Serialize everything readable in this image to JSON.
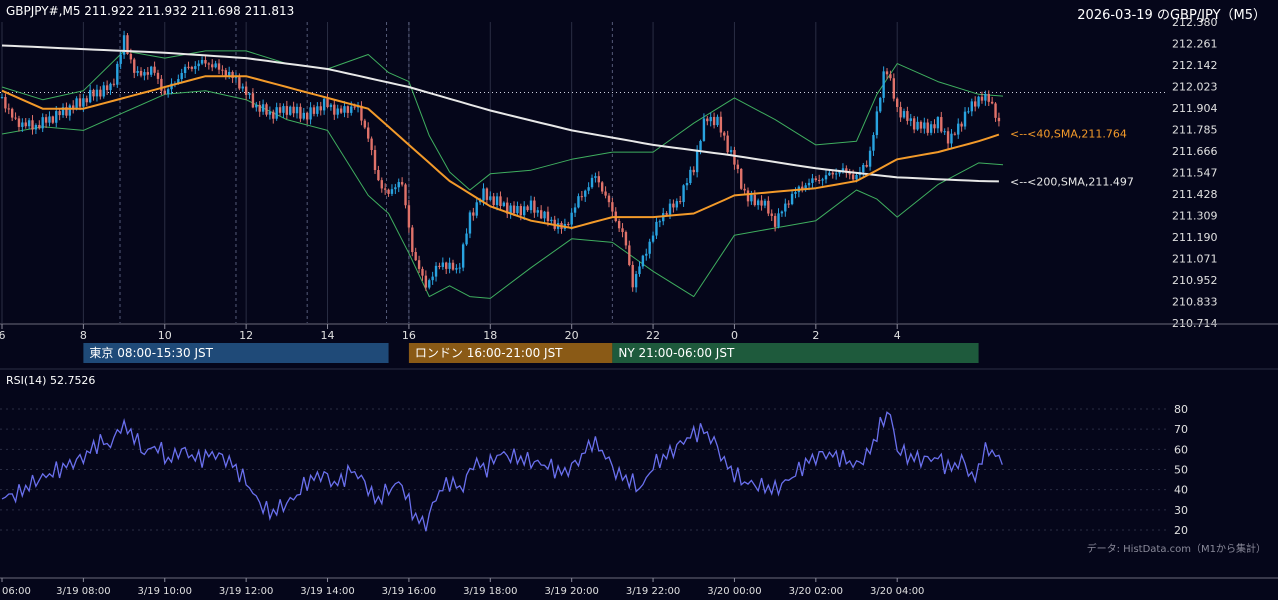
{
  "header": {
    "symbol_ohlc": "GBPJPY#,M5 211.922 211.932 211.698 211.813",
    "title_right": "2026-03-19 のGBP/JPY（M5）"
  },
  "footer": {
    "source": "データ: HistData.com（M1から集計）"
  },
  "colors": {
    "background": "#05061a",
    "up": "#29a3e0",
    "down": "#e0726a",
    "sma40": "#f39a2a",
    "sma200": "#e8e8e8",
    "bollinger": "#3fae5f",
    "rsi": "#6a70ee",
    "tokyo": "#1f4a78",
    "london": "#8a5a16",
    "ny": "#1e5a3c"
  },
  "chart_data": [
    {
      "type": "candlestick",
      "instrument": "GBPJPY# M5",
      "overlays": [
        "SMA 40",
        "SMA 200",
        "Bollinger Bands"
      ],
      "y_ticks": [
        "212.380",
        "212.261",
        "212.142",
        "212.023",
        "211.904",
        "211.785",
        "211.666",
        "211.547",
        "211.428",
        "211.309",
        "211.190",
        "211.071",
        "210.952",
        "210.833",
        "210.714"
      ],
      "ylim": [
        210.714,
        212.38
      ],
      "x_ticks": [
        {
          "label": "6",
          "hour": 6
        },
        {
          "label": "8",
          "hour": 8
        },
        {
          "label": "10",
          "hour": 10
        },
        {
          "label": "12",
          "hour": 12
        },
        {
          "label": "14",
          "hour": 14
        },
        {
          "label": "16",
          "hour": 16
        },
        {
          "label": "18",
          "hour": 18
        },
        {
          "label": "20",
          "hour": 20
        },
        {
          "label": "22",
          "hour": 22
        },
        {
          "label": "0",
          "hour": 24
        },
        {
          "label": "2",
          "hour": 26
        },
        {
          "label": "4",
          "hour": 28
        }
      ],
      "xlim": [
        6,
        30.6
      ],
      "reference_line": 211.99,
      "vertical_markers_hours": [
        8.9,
        11.75,
        13.5,
        15.45,
        16.0,
        21.0
      ],
      "sessions": [
        {
          "label": "東京 08:00-15:30 JST",
          "start": 8,
          "end": 15.5
        },
        {
          "label": "ロンドン 16:00-21:00 JST",
          "start": 16,
          "end": 21
        },
        {
          "label": "NY 21:00-06:00 JST",
          "start": 21,
          "end": 30
        }
      ],
      "annotations": [
        {
          "text": "<--<40,SMA,211.764",
          "value": 211.764
        },
        {
          "text": "<--<200,SMA,211.497",
          "value": 211.497
        }
      ],
      "price_path": [
        [
          6.0,
          211.96
        ],
        [
          6.3,
          211.83
        ],
        [
          6.8,
          211.8
        ],
        [
          7.3,
          211.86
        ],
        [
          7.8,
          211.92
        ],
        [
          8.3,
          211.99
        ],
        [
          8.7,
          212.02
        ],
        [
          9.0,
          212.28
        ],
        [
          9.3,
          212.08
        ],
        [
          9.7,
          212.12
        ],
        [
          10.0,
          211.98
        ],
        [
          10.5,
          212.12
        ],
        [
          11.0,
          212.16
        ],
        [
          11.5,
          212.1
        ],
        [
          11.8,
          212.05
        ],
        [
          12.2,
          211.92
        ],
        [
          12.6,
          211.87
        ],
        [
          13.0,
          211.9
        ],
        [
          13.5,
          211.86
        ],
        [
          13.9,
          211.93
        ],
        [
          14.3,
          211.88
        ],
        [
          14.7,
          211.92
        ],
        [
          15.0,
          211.75
        ],
        [
          15.2,
          211.52
        ],
        [
          15.5,
          211.42
        ],
        [
          15.8,
          211.52
        ],
        [
          16.1,
          211.1
        ],
        [
          16.4,
          210.92
        ],
        [
          16.8,
          211.05
        ],
        [
          17.2,
          211.0
        ],
        [
          17.5,
          211.3
        ],
        [
          17.8,
          211.43
        ],
        [
          18.2,
          211.38
        ],
        [
          18.6,
          211.33
        ],
        [
          19.0,
          211.36
        ],
        [
          19.4,
          211.29
        ],
        [
          19.8,
          211.23
        ],
        [
          20.2,
          211.41
        ],
        [
          20.6,
          211.53
        ],
        [
          21.0,
          211.33
        ],
        [
          21.3,
          211.18
        ],
        [
          21.5,
          210.93
        ],
        [
          21.8,
          211.1
        ],
        [
          22.2,
          211.31
        ],
        [
          22.6,
          211.38
        ],
        [
          23.0,
          211.58
        ],
        [
          23.3,
          211.86
        ],
        [
          23.6,
          211.82
        ],
        [
          24.0,
          211.6
        ],
        [
          24.3,
          211.4
        ],
        [
          24.7,
          211.38
        ],
        [
          25.0,
          211.27
        ],
        [
          25.4,
          211.42
        ],
        [
          25.8,
          211.49
        ],
        [
          26.2,
          211.52
        ],
        [
          26.6,
          211.56
        ],
        [
          27.0,
          211.52
        ],
        [
          27.3,
          211.62
        ],
        [
          27.5,
          211.86
        ],
        [
          27.7,
          212.15
        ],
        [
          28.0,
          211.9
        ],
        [
          28.3,
          211.83
        ],
        [
          28.7,
          211.79
        ],
        [
          29.0,
          211.82
        ],
        [
          29.3,
          211.72
        ],
        [
          29.7,
          211.88
        ],
        [
          30.0,
          211.96
        ],
        [
          30.3,
          211.95
        ],
        [
          30.5,
          211.81
        ]
      ],
      "sma40": [
        [
          6.0,
          212.0
        ],
        [
          7.0,
          211.9
        ],
        [
          8.0,
          211.9
        ],
        [
          9.0,
          211.96
        ],
        [
          10.0,
          212.02
        ],
        [
          11.0,
          212.08
        ],
        [
          12.0,
          212.08
        ],
        [
          13.0,
          212.02
        ],
        [
          14.0,
          211.96
        ],
        [
          15.0,
          211.9
        ],
        [
          16.0,
          211.7
        ],
        [
          17.0,
          211.5
        ],
        [
          18.0,
          211.36
        ],
        [
          19.0,
          211.28
        ],
        [
          20.0,
          211.24
        ],
        [
          21.0,
          211.3
        ],
        [
          22.0,
          211.3
        ],
        [
          23.0,
          211.32
        ],
        [
          24.0,
          211.42
        ],
        [
          25.0,
          211.44
        ],
        [
          26.0,
          211.46
        ],
        [
          27.0,
          211.5
        ],
        [
          28.0,
          211.62
        ],
        [
          29.0,
          211.66
        ],
        [
          30.0,
          211.72
        ],
        [
          30.6,
          211.764
        ]
      ],
      "sma200": [
        [
          6.0,
          212.25
        ],
        [
          8.0,
          212.23
        ],
        [
          10.0,
          212.21
        ],
        [
          12.0,
          212.18
        ],
        [
          14.0,
          212.12
        ],
        [
          16.0,
          212.02
        ],
        [
          18.0,
          211.89
        ],
        [
          20.0,
          211.78
        ],
        [
          22.0,
          211.7
        ],
        [
          24.0,
          211.64
        ],
        [
          26.0,
          211.57
        ],
        [
          28.0,
          211.52
        ],
        [
          30.0,
          211.5
        ],
        [
          30.6,
          211.497
        ]
      ],
      "bollinger_upper": [
        [
          6.0,
          212.02
        ],
        [
          7.0,
          211.95
        ],
        [
          8.0,
          212.0
        ],
        [
          9.0,
          212.22
        ],
        [
          10.0,
          212.18
        ],
        [
          11.0,
          212.22
        ],
        [
          12.0,
          212.22
        ],
        [
          13.0,
          212.15
        ],
        [
          14.0,
          212.12
        ],
        [
          15.0,
          212.2
        ],
        [
          15.5,
          212.1
        ],
        [
          16.0,
          212.05
        ],
        [
          16.5,
          211.75
        ],
        [
          17.0,
          211.55
        ],
        [
          17.5,
          211.45
        ],
        [
          18.0,
          211.54
        ],
        [
          19.0,
          211.56
        ],
        [
          20.0,
          211.62
        ],
        [
          21.0,
          211.66
        ],
        [
          22.0,
          211.66
        ],
        [
          23.0,
          211.82
        ],
        [
          24.0,
          211.96
        ],
        [
          25.0,
          211.84
        ],
        [
          26.0,
          211.7
        ],
        [
          27.0,
          211.72
        ],
        [
          27.5,
          211.98
        ],
        [
          28.0,
          212.15
        ],
        [
          29.0,
          212.05
        ],
        [
          30.0,
          211.98
        ],
        [
          30.6,
          211.97
        ]
      ],
      "bollinger_lower": [
        [
          6.0,
          211.76
        ],
        [
          7.0,
          211.8
        ],
        [
          8.0,
          211.78
        ],
        [
          9.0,
          211.88
        ],
        [
          10.0,
          211.98
        ],
        [
          11.0,
          212.0
        ],
        [
          12.0,
          211.95
        ],
        [
          13.0,
          211.84
        ],
        [
          14.0,
          211.78
        ],
        [
          15.0,
          211.42
        ],
        [
          15.5,
          211.32
        ],
        [
          16.0,
          211.1
        ],
        [
          16.5,
          210.86
        ],
        [
          17.0,
          210.92
        ],
        [
          17.5,
          210.86
        ],
        [
          18.0,
          210.85
        ],
        [
          19.0,
          211.02
        ],
        [
          20.0,
          211.18
        ],
        [
          21.0,
          211.16
        ],
        [
          22.0,
          211.0
        ],
        [
          23.0,
          210.86
        ],
        [
          24.0,
          211.2
        ],
        [
          25.0,
          211.24
        ],
        [
          26.0,
          211.28
        ],
        [
          27.0,
          211.45
        ],
        [
          27.5,
          211.4
        ],
        [
          28.0,
          211.3
        ],
        [
          29.0,
          211.48
        ],
        [
          30.0,
          211.6
        ],
        [
          30.6,
          211.59
        ]
      ]
    },
    {
      "type": "line",
      "label": "RSI(14) 52.7526",
      "y_ticks": [
        "80",
        "70",
        "60",
        "50",
        "40",
        "30",
        "20"
      ],
      "ylim": [
        16,
        84
      ],
      "x_ticks": [
        "06:00",
        "3/19 08:00",
        "3/19 10:00",
        "3/19 12:00",
        "3/19 14:00",
        "3/19 16:00",
        "3/19 18:00",
        "3/19 20:00",
        "3/19 22:00",
        "3/20 00:00",
        "3/20 02:00",
        "3/20 04:00"
      ],
      "x_tick_hours": [
        6,
        8,
        10,
        12,
        14,
        16,
        18,
        20,
        22,
        24,
        26,
        28
      ],
      "xlim": [
        6,
        30.6
      ],
      "path": [
        [
          6.0,
          36
        ],
        [
          6.4,
          38
        ],
        [
          6.8,
          44
        ],
        [
          7.2,
          48
        ],
        [
          7.6,
          52
        ],
        [
          8.0,
          56
        ],
        [
          8.4,
          64
        ],
        [
          8.7,
          62
        ],
        [
          8.9,
          72
        ],
        [
          9.2,
          68
        ],
        [
          9.5,
          58
        ],
        [
          9.8,
          62
        ],
        [
          10.1,
          54
        ],
        [
          10.4,
          60
        ],
        [
          10.8,
          55
        ],
        [
          11.2,
          58
        ],
        [
          11.6,
          54
        ],
        [
          12.0,
          44
        ],
        [
          12.3,
          34
        ],
        [
          12.6,
          28
        ],
        [
          12.9,
          32
        ],
        [
          13.2,
          36
        ],
        [
          13.5,
          44
        ],
        [
          13.9,
          48
        ],
        [
          14.2,
          42
        ],
        [
          14.6,
          50
        ],
        [
          14.9,
          44
        ],
        [
          15.2,
          34
        ],
        [
          15.5,
          40
        ],
        [
          15.8,
          44
        ],
        [
          16.1,
          28
        ],
        [
          16.4,
          22
        ],
        [
          16.7,
          38
        ],
        [
          17.0,
          44
        ],
        [
          17.3,
          40
        ],
        [
          17.6,
          54
        ],
        [
          17.9,
          50
        ],
        [
          18.2,
          58
        ],
        [
          18.6,
          56
        ],
        [
          19.0,
          54
        ],
        [
          19.4,
          52
        ],
        [
          19.8,
          48
        ],
        [
          20.2,
          55
        ],
        [
          20.5,
          64
        ],
        [
          20.8,
          58
        ],
        [
          21.1,
          48
        ],
        [
          21.4,
          45
        ],
        [
          21.7,
          40
        ],
        [
          22.0,
          52
        ],
        [
          22.4,
          58
        ],
        [
          22.8,
          65
        ],
        [
          23.2,
          70
        ],
        [
          23.5,
          64
        ],
        [
          23.8,
          52
        ],
        [
          24.2,
          44
        ],
        [
          24.6,
          42
        ],
        [
          25.0,
          40
        ],
        [
          25.4,
          46
        ],
        [
          25.8,
          54
        ],
        [
          26.2,
          58
        ],
        [
          26.6,
          56
        ],
        [
          27.0,
          52
        ],
        [
          27.3,
          58
        ],
        [
          27.6,
          72
        ],
        [
          27.8,
          80
        ],
        [
          28.0,
          60
        ],
        [
          28.3,
          56
        ],
        [
          28.7,
          55
        ],
        [
          29.0,
          56
        ],
        [
          29.3,
          50
        ],
        [
          29.6,
          55
        ],
        [
          29.9,
          44
        ],
        [
          30.1,
          58
        ],
        [
          30.3,
          60
        ],
        [
          30.6,
          52.75
        ]
      ]
    }
  ]
}
